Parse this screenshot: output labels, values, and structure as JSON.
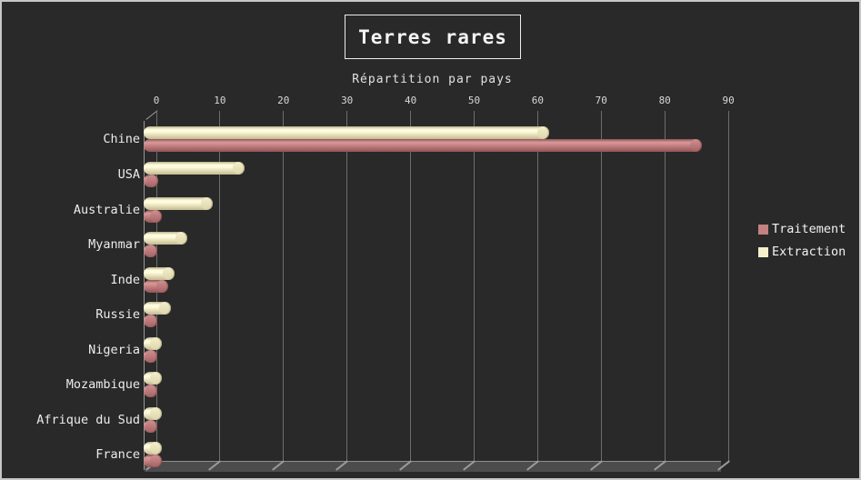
{
  "title": "Terres rares",
  "subtitle": "Répartition par pays",
  "legend": {
    "position": "right",
    "items": [
      {
        "label": "Traitement",
        "color": "#c48182"
      },
      {
        "label": "Extraction",
        "color": "#f6f0cc"
      }
    ]
  },
  "chart_data": {
    "type": "bar",
    "orientation": "horizontal",
    "title": "Terres rares",
    "subtitle": "Répartition par pays",
    "categories": [
      "Chine",
      "USA",
      "Australie",
      "Myanmar",
      "Inde",
      "Russie",
      "Nigeria",
      "Mozambique",
      "Afrique du Sud",
      "France"
    ],
    "series": [
      {
        "name": "Traitement",
        "color": "#c48182",
        "values": [
          86,
          0.5,
          1,
          0.3,
          2,
          0.3,
          0.3,
          0.3,
          0.3,
          1
        ]
      },
      {
        "name": "Extraction",
        "color": "#f6f0cc",
        "values": [
          62,
          14,
          9,
          5,
          3,
          2.5,
          1,
          1,
          1,
          1
        ]
      }
    ],
    "xlabel": "",
    "ylabel": "",
    "xlim": [
      0,
      90
    ],
    "xticks": [
      0,
      10,
      20,
      30,
      40,
      50,
      60,
      70,
      80,
      90
    ],
    "grid": true,
    "legend_position": "right",
    "style": "3d-cylinder-dark"
  },
  "colors": {
    "background": "#292929",
    "gridline": "#6d6d6d",
    "floor": "#4c4c4c",
    "traitement": "#c48182",
    "extraction": "#f6f0cc",
    "text": "#ececec"
  }
}
